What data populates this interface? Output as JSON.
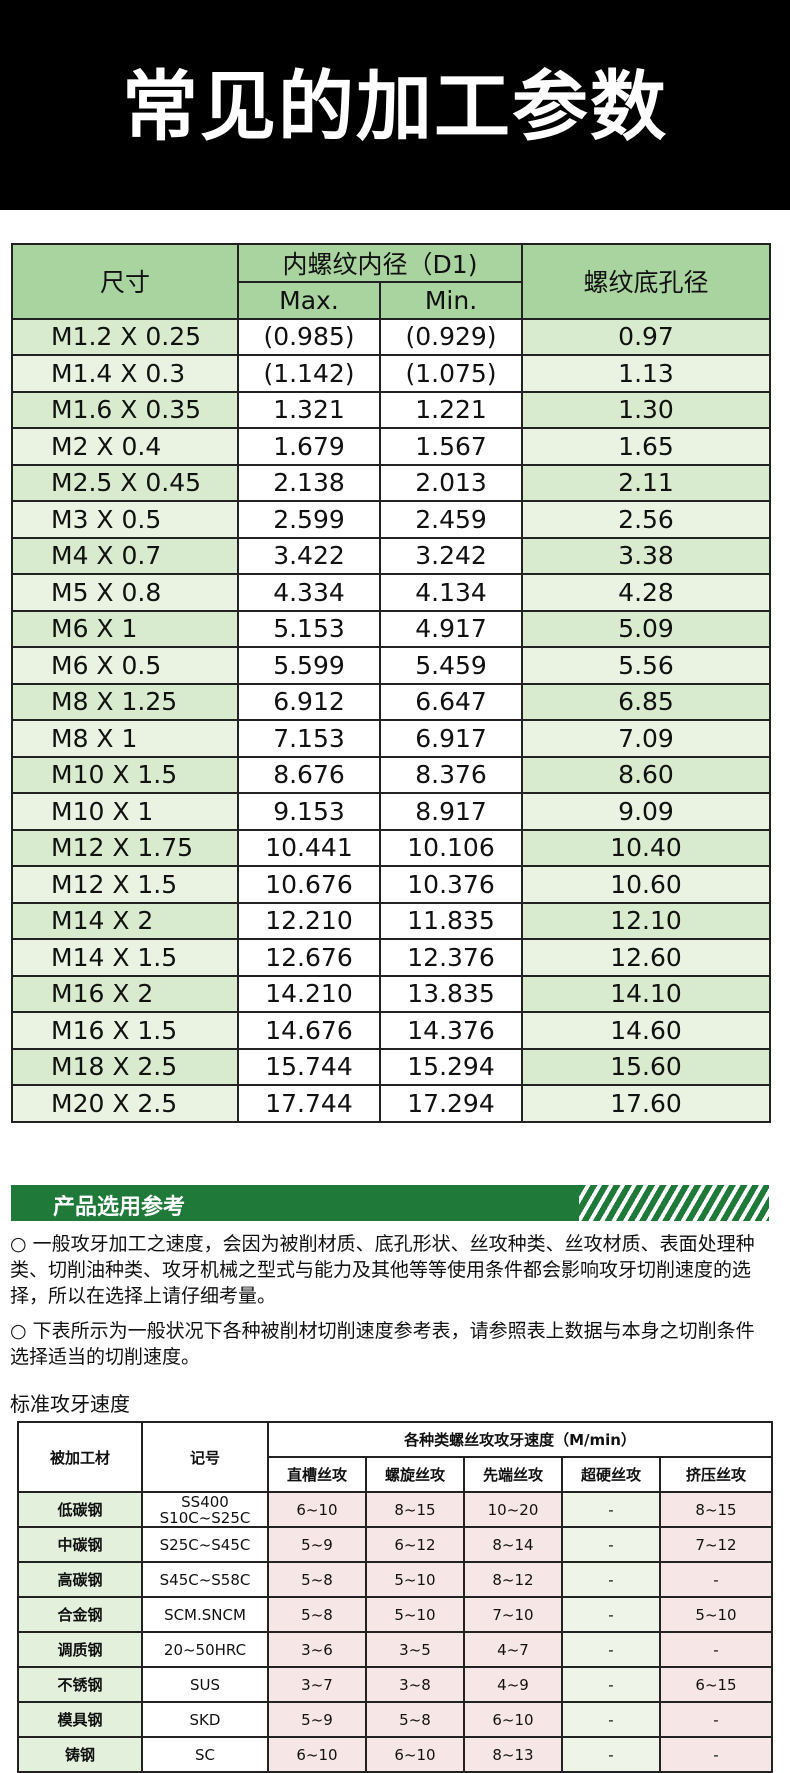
{
  "page_title": "常见的加工参数",
  "thread_table": {
    "col_size": "尺寸",
    "col_inner": "内螺纹内径（D1)",
    "col_max": "Max.",
    "col_min": "Min.",
    "col_hole": "螺纹底孔径",
    "rows": [
      [
        "M1.2 X 0.25",
        "(0.985)",
        "(0.929)",
        "0.97"
      ],
      [
        "M1.4 X 0.3",
        "(1.142)",
        "(1.075)",
        "1.13"
      ],
      [
        "M1.6 X 0.35",
        "1.321",
        "1.221",
        "1.30"
      ],
      [
        "M2 X 0.4",
        "1.679",
        "1.567",
        "1.65"
      ],
      [
        "M2.5 X 0.45",
        "2.138",
        "2.013",
        "2.11"
      ],
      [
        "M3 X 0.5",
        "2.599",
        "2.459",
        "2.56"
      ],
      [
        "M4 X 0.7",
        "3.422",
        "3.242",
        "3.38"
      ],
      [
        "M5 X 0.8",
        "4.334",
        "4.134",
        "4.28"
      ],
      [
        "M6 X 1",
        "5.153",
        "4.917",
        "5.09"
      ],
      [
        "M6 X 0.5",
        "5.599",
        "5.459",
        "5.56"
      ],
      [
        "M8 X 1.25",
        "6.912",
        "6.647",
        "6.85"
      ],
      [
        "M8 X 1",
        "7.153",
        "6.917",
        "7.09"
      ],
      [
        "M10 X 1.5",
        "8.676",
        "8.376",
        "8.60"
      ],
      [
        "M10 X 1",
        "9.153",
        "8.917",
        "9.09"
      ],
      [
        "M12 X 1.75",
        "10.441",
        "10.106",
        "10.40"
      ],
      [
        "M12 X 1.5",
        "10.676",
        "10.376",
        "10.60"
      ],
      [
        "M14 X 2",
        "12.210",
        "11.835",
        "12.10"
      ],
      [
        "M14 X 1.5",
        "12.676",
        "12.376",
        "12.60"
      ],
      [
        "M16 X 2",
        "14.210",
        "13.835",
        "14.10"
      ],
      [
        "M16 X 1.5",
        "14.676",
        "14.376",
        "14.60"
      ],
      [
        "M18 X 2.5",
        "15.744",
        "15.294",
        "15.60"
      ],
      [
        "M20 X 2.5",
        "17.744",
        "17.294",
        "17.60"
      ]
    ]
  },
  "section_bar": {
    "title": "产品选用参考"
  },
  "paragraphs": [
    "○ 一般攻牙加工之速度，会因为被削材质、底孔形状、丝攻种类、丝攻材质、表面处理种类、切削油种类、攻牙机械之型式与能力及其他等等使用条件都会影响攻牙切削速度的选择，所以在选择上请仔细考量。",
    "○ 下表所示为一般状况下各种被削材切削速度参考表，请参照表上数据与本身之切削条件选择适当的切削速度。"
  ],
  "speed_section_label": "标准攻牙速度",
  "speed_table": {
    "col_material": "被加工材",
    "col_code": "记号",
    "col_group": "各种类螺丝攻攻牙速度（M/min）",
    "tap_types": [
      "直槽丝攻",
      "螺旋丝攻",
      "先端丝攻",
      "超硬丝攻",
      "挤压丝攻"
    ],
    "rows": [
      {
        "material": "低碳钢",
        "code": "SS400 S10C~S25C",
        "speeds": [
          "6~10",
          "8~15",
          "10~20",
          "-",
          "8~15"
        ]
      },
      {
        "material": "中碳钢",
        "code": "S25C~S45C",
        "speeds": [
          "5~9",
          "6~12",
          "8~14",
          "-",
          "7~12"
        ]
      },
      {
        "material": "高碳钢",
        "code": "S45C~S58C",
        "speeds": [
          "5~8",
          "5~10",
          "8~12",
          "-",
          "-"
        ]
      },
      {
        "material": "合金钢",
        "code": "SCM.SNCM",
        "speeds": [
          "5~8",
          "5~10",
          "7~10",
          "-",
          "5~10"
        ]
      },
      {
        "material": "调质钢",
        "code": "20~50HRC",
        "speeds": [
          "3~6",
          "3~5",
          "4~7",
          "-",
          "-"
        ]
      },
      {
        "material": "不锈钢",
        "code": "SUS",
        "speeds": [
          "3~7",
          "3~8",
          "4~9",
          "-",
          "6~15"
        ]
      },
      {
        "material": "模具钢",
        "code": "SKD",
        "speeds": [
          "5~9",
          "5~8",
          "6~10",
          "-",
          "-"
        ]
      },
      {
        "material": "铸钢",
        "code": "SC",
        "speeds": [
          "6~10",
          "6~10",
          "8~13",
          "-",
          "-"
        ]
      }
    ]
  }
}
